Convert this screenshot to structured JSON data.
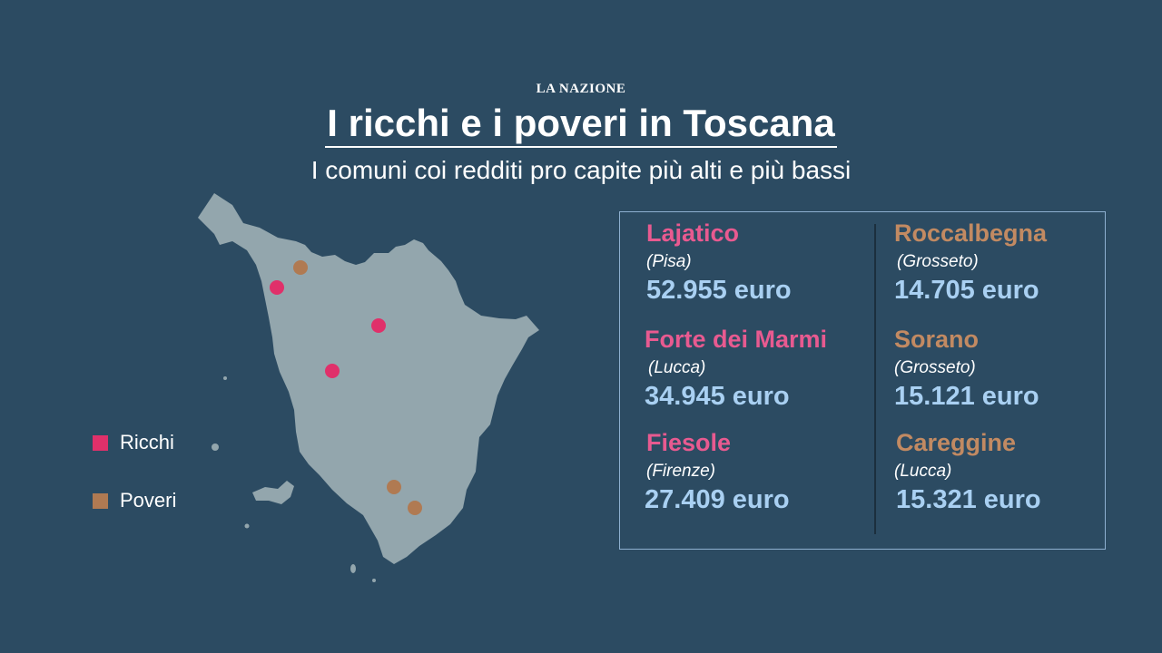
{
  "masthead": "LA NAZIONE",
  "title": "I ricchi e i poveri in Toscana",
  "subtitle": "I comuni coi redditi pro capite più alti e più bassi",
  "colors": {
    "background": "#2c4b62",
    "land": "#93a6ad",
    "rich": "#e0306a",
    "poor": "#b07a52",
    "rich_text": "#e85a90",
    "poor_text": "#c28a62",
    "value_text": "#a9d0f2"
  },
  "legend": {
    "rich": "Ricchi",
    "poor": "Poveri"
  },
  "rich": [
    {
      "name": "Lajatico",
      "province": "(Pisa)",
      "income": "52.955 euro"
    },
    {
      "name": "Forte dei Marmi",
      "province": "(Lucca)",
      "income": "34.945 euro"
    },
    {
      "name": "Fiesole",
      "province": "(Firenze)",
      "income": "27.409 euro"
    }
  ],
  "poor": [
    {
      "name": "Roccalbegna",
      "province": "(Grosseto)",
      "income": "14.705 euro"
    },
    {
      "name": "Sorano",
      "province": "(Grosseto)",
      "income": "15.121 euro"
    },
    {
      "name": "Careggine",
      "province": "(Lucca)",
      "income": "15.321 euro"
    }
  ]
}
